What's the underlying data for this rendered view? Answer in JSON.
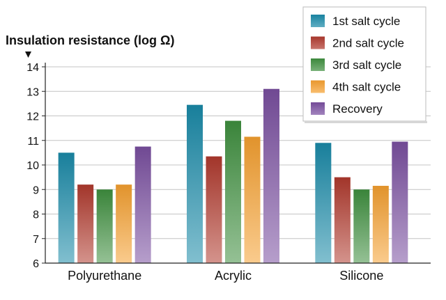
{
  "chart_data": {
    "type": "bar",
    "ylabel": "Insulation resistance (log Ω)",
    "ylim": [
      6,
      14
    ],
    "yticks": [
      6,
      7,
      8,
      9,
      10,
      11,
      12,
      13,
      14
    ],
    "grid": true,
    "legend_position": "top-right",
    "categories": [
      "Polyurethane",
      "Acrylic",
      "Silicone"
    ],
    "series": [
      {
        "name": "1st salt cycle",
        "color": "#1a8aa8",
        "values": [
          10.5,
          12.45,
          10.9
        ]
      },
      {
        "name": "2nd salt cycle",
        "color": "#b03a2e",
        "values": [
          9.2,
          10.35,
          9.5
        ]
      },
      {
        "name": "3rd salt cycle",
        "color": "#3f8f3f",
        "values": [
          9.0,
          11.8,
          9.0
        ]
      },
      {
        "name": "4th salt cycle",
        "color": "#f5a030",
        "values": [
          9.2,
          11.15,
          9.15
        ]
      },
      {
        "name": "Recovery",
        "color": "#7a4fa0",
        "values": [
          10.75,
          13.1,
          10.95
        ]
      }
    ]
  }
}
